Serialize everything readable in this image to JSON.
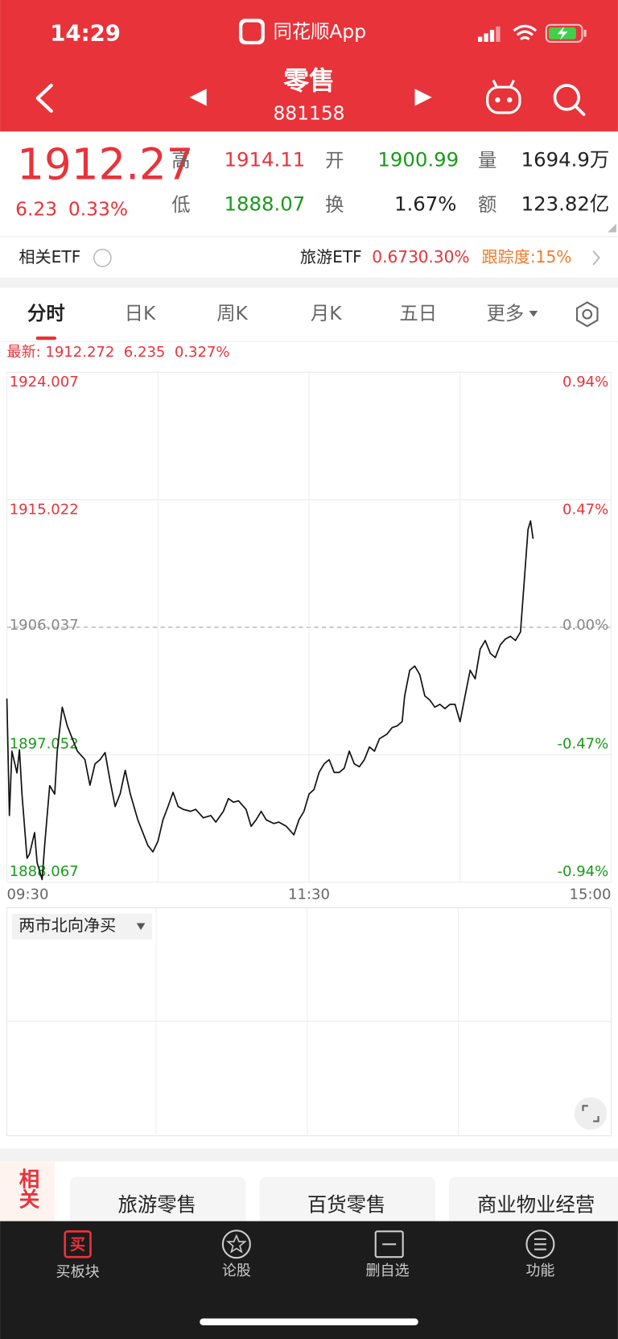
{
  "status_bar": {
    "time": "14:29",
    "app": "同花顺App"
  },
  "header": {
    "title": "零售",
    "code": "881158"
  },
  "quote": {
    "price": "1912.27",
    "change": "6.23",
    "change_pct": "0.33%",
    "stats": [
      {
        "label": "高",
        "value": "1914.11"
      },
      {
        "label": "开",
        "value": "1900.99"
      },
      {
        "label": "量",
        "value": "1694.9万"
      },
      {
        "label": "低",
        "value": "1888.07"
      },
      {
        "label": "换",
        "value": "1.67%"
      },
      {
        "label": "额",
        "value": "123.82亿"
      }
    ]
  },
  "etf": {
    "label": "相关ETF",
    "name": "旅游ETF",
    "price": "0.673",
    "change_pct": "0.30%",
    "tracking": "跟踪度:15%"
  },
  "tabs": [
    "分时",
    "日K",
    "周K",
    "月K",
    "五日",
    "更多"
  ],
  "latest": "最新: 1912.272  6.235  0.327%",
  "chart_data": {
    "type": "line",
    "color": "#111111",
    "up_color": "#e8333a",
    "down_color": "#1a9a1a",
    "flat_color": "#888888",
    "x": [
      0,
      1,
      2,
      4,
      5,
      6,
      8,
      9,
      11,
      12,
      14,
      15,
      17,
      19,
      20,
      22,
      24,
      26,
      28,
      31,
      33,
      35,
      37,
      39,
      41,
      43,
      45,
      47,
      49,
      52,
      54,
      56,
      58,
      60,
      62,
      64,
      66,
      68,
      70,
      73,
      75,
      78,
      81,
      83,
      86,
      88,
      90,
      92,
      95,
      97,
      99,
      101,
      103,
      106,
      108,
      111,
      114,
      116,
      118,
      120,
      122,
      124,
      126,
      128,
      130,
      132,
      134,
      136,
      138,
      140,
      142,
      144,
      146,
      148,
      151,
      153,
      155,
      157,
      158,
      160,
      162,
      164,
      166,
      168,
      170,
      172,
      174,
      176,
      178,
      180,
      182,
      184,
      186,
      188,
      190,
      192,
      194,
      196,
      198,
      200,
      202,
      204,
      205,
      207,
      208,
      209
    ],
    "values": [
      1901.01,
      1892.76,
      1897.3,
      1895.77,
      1897.4,
      1894.27,
      1889.75,
      1890.05,
      1891.56,
      1889.45,
      1888.25,
      1890.65,
      1894.87,
      1894.27,
      1897.3,
      1900.4,
      1899.08,
      1898.18,
      1897.3,
      1896.7,
      1894.9,
      1896.4,
      1896.7,
      1897.2,
      1895.2,
      1893.4,
      1894.3,
      1895.95,
      1894.3,
      1892.46,
      1891.56,
      1890.65,
      1890.2,
      1890.95,
      1892.46,
      1893.4,
      1894.4,
      1893.4,
      1893.2,
      1893.06,
      1893.2,
      1892.6,
      1892.76,
      1892.3,
      1893.06,
      1893.96,
      1893.7,
      1893.8,
      1893.2,
      1892.0,
      1892.46,
      1893.06,
      1892.46,
      1892.2,
      1892.3,
      1892.0,
      1891.4,
      1892.46,
      1893.06,
      1894.27,
      1894.6,
      1895.8,
      1896.4,
      1896.7,
      1895.8,
      1895.8,
      1896.1,
      1897.3,
      1896.4,
      1896.2,
      1896.7,
      1897.6,
      1897.3,
      1898.18,
      1898.5,
      1898.96,
      1899.08,
      1899.38,
      1901.2,
      1903.0,
      1903.3,
      1902.7,
      1901.2,
      1900.9,
      1900.4,
      1900.6,
      1900.3,
      1900.6,
      1900.6,
      1899.38,
      1901.2,
      1903.0,
      1902.4,
      1904.5,
      1905.1,
      1904.2,
      1903.9,
      1904.8,
      1905.2,
      1905.4,
      1905.1,
      1905.7,
      1908.1,
      1912.93,
      1913.53,
      1912.27
    ],
    "xlim": [
      0,
      240
    ],
    "xticks": [
      {
        "value": 0,
        "label": "09:30"
      },
      {
        "value": 120,
        "label": "11:30"
      },
      {
        "value": 240,
        "label": "15:00"
      }
    ],
    "ylim": [
      1888.067,
      1924.007
    ],
    "yticks": [
      1924.007,
      1915.022,
      1906.037,
      1897.052,
      1888.067
    ],
    "y2lim": [
      -0.94,
      0.94
    ],
    "y2ticks": [
      {
        "value": 0.94,
        "label": "0.94%"
      },
      {
        "value": 0.47,
        "label": "0.47%"
      },
      {
        "value": 0,
        "label": "0.00%"
      },
      {
        "value": -0.47,
        "label": "-0.47%"
      },
      {
        "value": -0.94,
        "label": "-0.94%"
      }
    ],
    "grid": true
  },
  "sub_chart": {
    "indicator": "两市北向净买"
  },
  "related": {
    "label": "相关",
    "items": [
      "旅游零售",
      "百货零售",
      "商业物业经营"
    ]
  },
  "bottom_nav": [
    {
      "icon": "买",
      "label": "买板块"
    },
    {
      "label": "论股"
    },
    {
      "label": "删自选"
    },
    {
      "label": "功能"
    }
  ]
}
